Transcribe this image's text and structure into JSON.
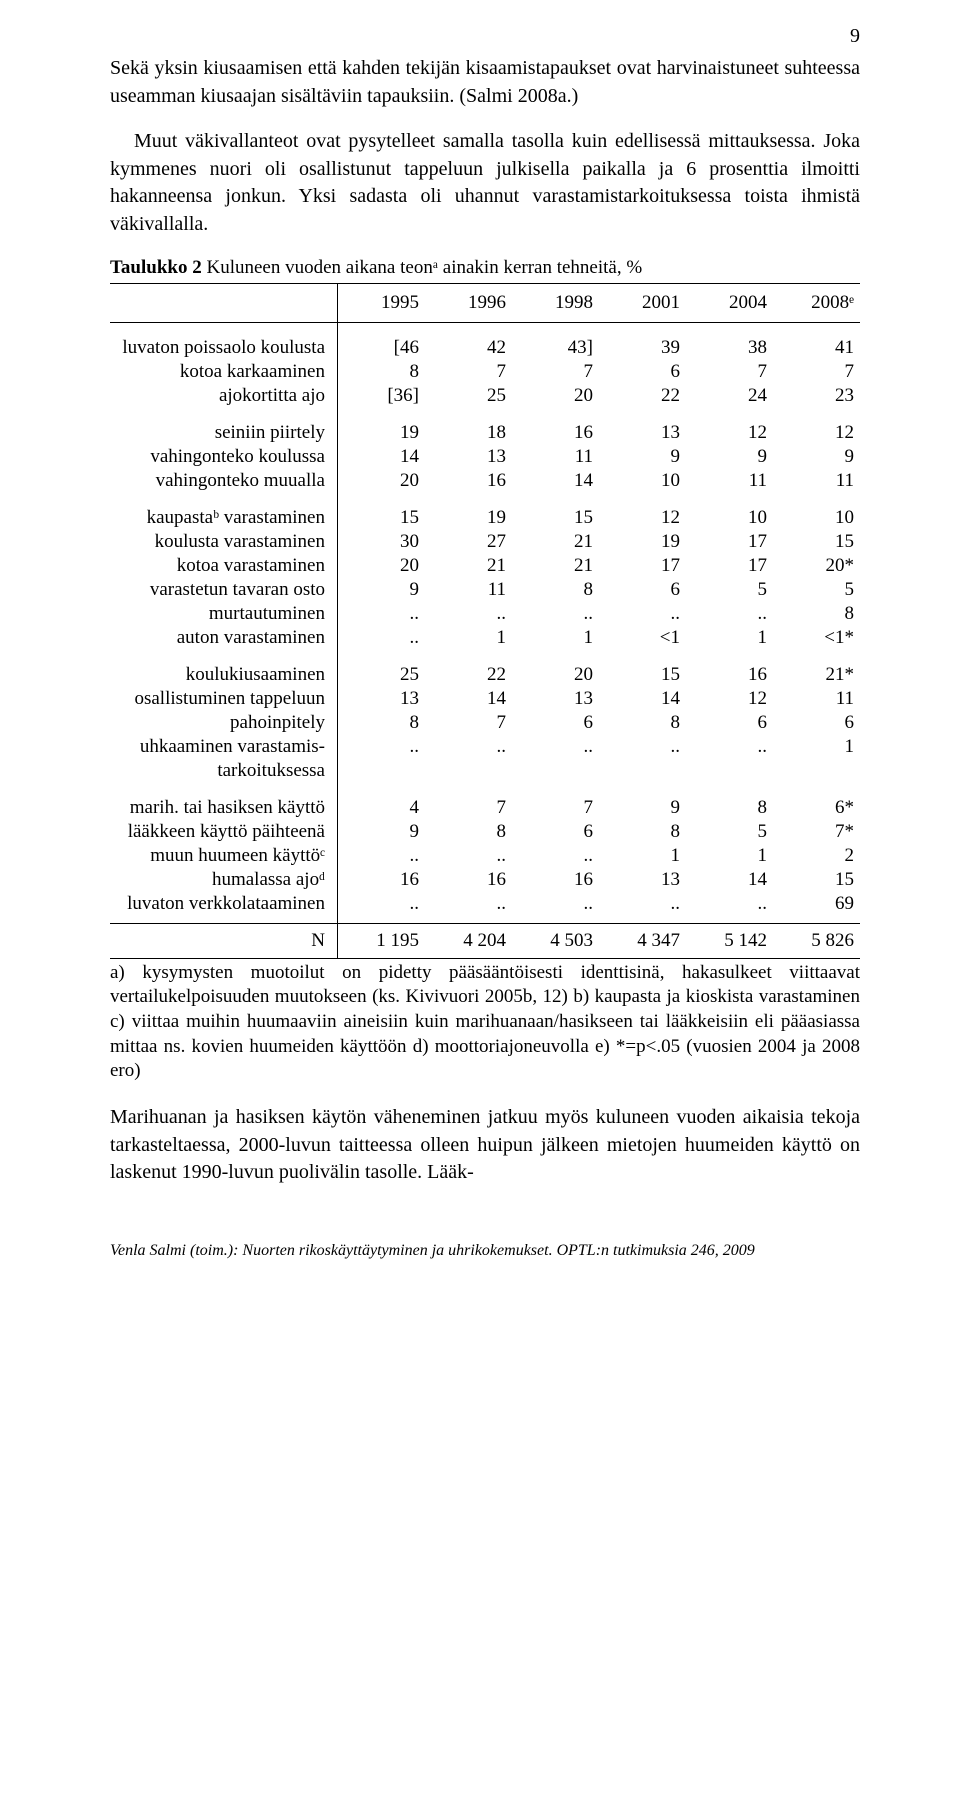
{
  "page_number": "9",
  "para1": "Sekä yksin kiusaamisen että kahden tekijän kisaamistapaukset ovat harvinaistuneet suhteessa useamman kiusaajan sisältäviin tapauksiin. (Salmi 2008a.)",
  "para2": "Muut väkivallanteot ovat pysytelleet samalla tasolla kuin edellisessä mittauksessa. Joka kymmenes nuori oli osallistunut tappeluun julkisella paikalla ja 6 prosenttia ilmoitti hakanneensa jonkun. Yksi sadasta oli uhannut varastamistarkoituksessa toista ihmistä väkivallalla.",
  "table": {
    "caption_bold": "Taulukko 2",
    "caption_rest": "  Kuluneen vuoden aikana teonᵃ ainakin kerran tehneitä, %",
    "headers": [
      "1995",
      "1996",
      "1998",
      "2001",
      "2004",
      "2008ᵉ"
    ],
    "groups": [
      [
        {
          "label": "luvaton poissaolo koulusta",
          "vals": [
            "[46",
            "42",
            "43]",
            "39",
            "38",
            "41"
          ]
        },
        {
          "label": "kotoa karkaaminen",
          "vals": [
            "8",
            "7",
            "7",
            "6",
            "7",
            "7"
          ]
        },
        {
          "label": "ajokortitta ajo",
          "vals": [
            "[36]",
            "25",
            "20",
            "22",
            "24",
            "23"
          ]
        }
      ],
      [
        {
          "label": "seiniin piirtely",
          "vals": [
            "19",
            "18",
            "16",
            "13",
            "12",
            "12"
          ]
        },
        {
          "label": "vahingonteko koulussa",
          "vals": [
            "14",
            "13",
            "11",
            "9",
            "9",
            "9"
          ]
        },
        {
          "label": "vahingonteko muualla",
          "vals": [
            "20",
            "16",
            "14",
            "10",
            "11",
            "11"
          ]
        }
      ],
      [
        {
          "label": "kaupastaᵇ varastaminen",
          "vals": [
            "15",
            "19",
            "15",
            "12",
            "10",
            "10"
          ]
        },
        {
          "label": "koulusta varastaminen",
          "vals": [
            "30",
            "27",
            "21",
            "19",
            "17",
            "15"
          ]
        },
        {
          "label": "kotoa varastaminen",
          "vals": [
            "20",
            "21",
            "21",
            "17",
            "17",
            "20*"
          ]
        },
        {
          "label": "varastetun tavaran osto",
          "vals": [
            "9",
            "11",
            "8",
            "6",
            "5",
            "5"
          ]
        },
        {
          "label": "murtautuminen",
          "vals": [
            "..",
            "..",
            "..",
            "..",
            "..",
            "8"
          ]
        },
        {
          "label": "auton varastaminen",
          "vals": [
            "..",
            "1",
            "1",
            "<1",
            "1",
            "<1*"
          ]
        }
      ],
      [
        {
          "label": "koulukiusaaminen",
          "vals": [
            "25",
            "22",
            "20",
            "15",
            "16",
            "21*"
          ]
        },
        {
          "label": "osallistuminen tappeluun",
          "vals": [
            "13",
            "14",
            "13",
            "14",
            "12",
            "11"
          ]
        },
        {
          "label": "pahoinpitely",
          "vals": [
            "8",
            "7",
            "6",
            "8",
            "6",
            "6"
          ]
        },
        {
          "label": "uhkaaminen varastamis-",
          "vals": [
            "..",
            "..",
            "..",
            "..",
            "..",
            "1"
          ]
        },
        {
          "label": "tarkoituksessa",
          "vals": [
            "",
            "",
            "",
            "",
            "",
            ""
          ]
        }
      ],
      [
        {
          "label": "marih. tai hasiksen käyttö",
          "vals": [
            "4",
            "7",
            "7",
            "9",
            "8",
            "6*"
          ]
        },
        {
          "label": "lääkkeen käyttö päihteenä",
          "vals": [
            "9",
            "8",
            "6",
            "8",
            "5",
            "7*"
          ]
        },
        {
          "label": "muun huumeen käyttöᶜ",
          "vals": [
            "..",
            "..",
            "..",
            "1",
            "1",
            "2"
          ]
        },
        {
          "label": "humalassa ajoᵈ",
          "vals": [
            "16",
            "16",
            "16",
            "13",
            "14",
            "15"
          ]
        },
        {
          "label": "luvaton verkkolataaminen",
          "vals": [
            "..",
            "..",
            "..",
            "..",
            "..",
            "69"
          ]
        }
      ]
    ],
    "footer_row": {
      "label": "N",
      "vals": [
        "1 195",
        "4 204",
        "4 503",
        "4 347",
        "5 142",
        "5 826"
      ]
    }
  },
  "footnote": "a) kysymysten muotoilut on pidetty pääsääntöisesti identtisinä, hakasulkeet viittaavat vertailukelpoisuuden muutokseen (ks. Kivivuori 2005b, 12) b) kaupasta ja kioskista varastaminen c) viittaa muihin huumaaviin aineisiin kuin marihuanaan/hasikseen tai lääkkeisiin eli pääasiassa mittaa ns. kovien huumeiden käyttöön d) moottoriajoneuvolla e) *=p<.05 (vuosien 2004 ja 2008 ero)",
  "para3": "Marihuanan ja hasiksen käytön väheneminen jatkuu myös kuluneen vuoden aikaisia tekoja tarkasteltaessa, 2000-luvun taitteessa olleen huipun jälkeen mietojen huumeiden käyttö on laskenut 1990-luvun puolivälin tasolle. Lääk-",
  "page_footer": "Venla Salmi (toim.): Nuorten rikoskäyttäytyminen ja uhrikokemukset. OPTL:n tutkimuksia 246, 2009"
}
